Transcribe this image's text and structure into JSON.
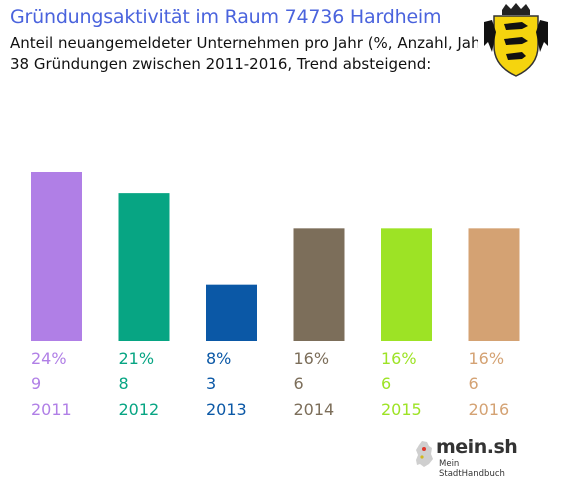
{
  "header": {
    "title": "Gründungsaktivität im Raum 74736 Hardheim",
    "subtitle_line1": "Anteil neuangemeldeter Unternehmen pro Jahr (%, Anzahl, Jahr)",
    "subtitle_line2": "38 Gründungen zwischen 2011-2016, Trend absteigend:"
  },
  "coat_of_arms": {
    "icon": "baden-wuerttemberg-coat-of-arms-icon"
  },
  "brand": {
    "name": "mein.sh",
    "tagline": "Mein StadtHandbuch",
    "icon": "germany-map-icon"
  },
  "chart_data": {
    "type": "bar",
    "categories": [
      "2011",
      "2012",
      "2013",
      "2014",
      "2015",
      "2016"
    ],
    "values": [
      24,
      21,
      8,
      16,
      16,
      16
    ],
    "percent_labels": [
      "24%",
      "21%",
      "8%",
      "16%",
      "16%",
      "16%"
    ],
    "counts": [
      9,
      8,
      3,
      6,
      6,
      6
    ],
    "colors": [
      "#b07fe6",
      "#07a583",
      "#0b58a6",
      "#7c6e5a",
      "#9de325",
      "#d4a273"
    ],
    "ylim": [
      0,
      24
    ],
    "grid": false,
    "legend": "none"
  }
}
